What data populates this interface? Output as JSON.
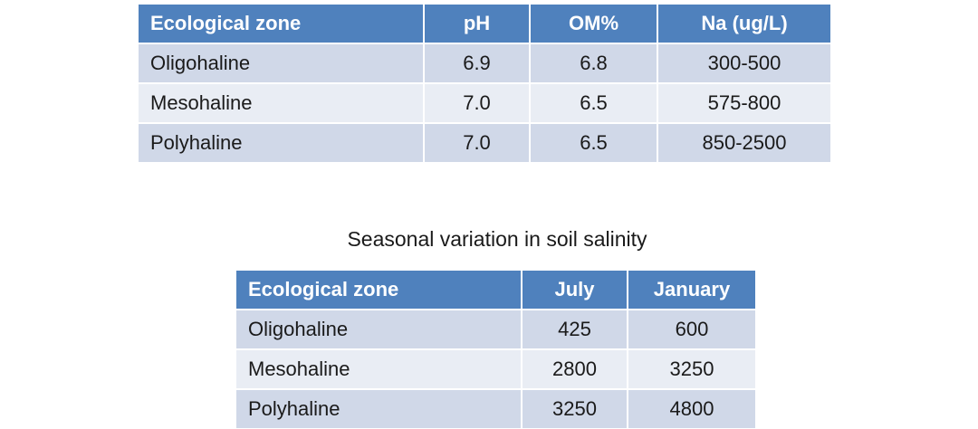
{
  "table1": {
    "headers": [
      "Ecological zone",
      "pH",
      "OM%",
      "Na (ug/L)"
    ],
    "rows": [
      [
        "Oligohaline",
        "6.9",
        "6.8",
        "300-500"
      ],
      [
        "Mesohaline",
        "7.0",
        "6.5",
        "575-800"
      ],
      [
        "Polyhaline",
        "7.0",
        "6.5",
        "850-2500"
      ]
    ]
  },
  "caption": "Seasonal variation in soil salinity",
  "table2": {
    "headers": [
      "Ecological zone",
      "July",
      "January"
    ],
    "rows": [
      [
        "Oligohaline",
        "425",
        "600"
      ],
      [
        "Mesohaline",
        "2800",
        "3250"
      ],
      [
        "Polyhaline",
        "3250",
        "4800"
      ]
    ]
  }
}
